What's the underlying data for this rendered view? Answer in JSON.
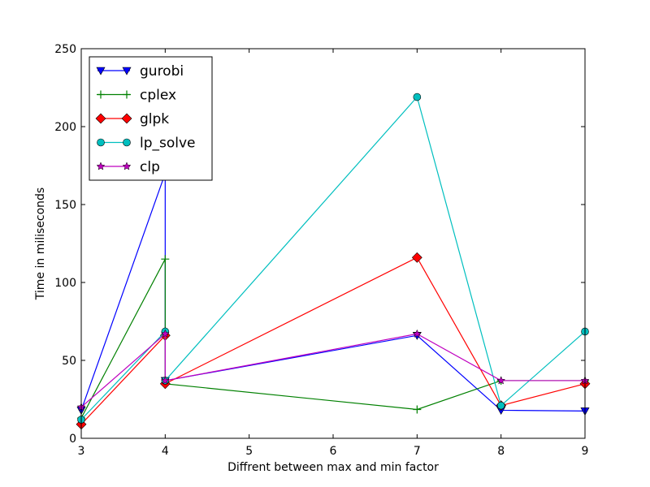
{
  "chart_data": {
    "type": "line",
    "title": "",
    "xlabel": "Diffrent between max and min factor",
    "ylabel": "Time in miliseconds",
    "xlim": [
      3,
      9
    ],
    "ylim": [
      0,
      250
    ],
    "xticks": [
      "3",
      "4",
      "5",
      "6",
      "7",
      "8",
      "9"
    ],
    "yticks": [
      "0",
      "50",
      "100",
      "150",
      "200",
      "250"
    ],
    "grid": false,
    "legend_position": "top-left",
    "series": [
      {
        "name": "gurobi",
        "color": "#0000ff",
        "marker": "triangle-down",
        "points": [
          [
            3,
            18
          ],
          [
            4,
            170
          ],
          [
            4,
            37
          ],
          [
            7,
            66
          ],
          [
            8,
            18
          ],
          [
            9,
            17.5
          ]
        ]
      },
      {
        "name": "cplex",
        "color": "#008000",
        "marker": "plus",
        "points": [
          [
            3,
            13
          ],
          [
            4,
            115
          ],
          [
            4,
            35
          ],
          [
            7,
            18.5
          ],
          [
            8,
            37
          ],
          [
            9,
            37
          ]
        ]
      },
      {
        "name": "glpk",
        "color": "#ff0000",
        "marker": "diamond",
        "points": [
          [
            3,
            9
          ],
          [
            4,
            66
          ],
          [
            4,
            35
          ],
          [
            7,
            116
          ],
          [
            8,
            21
          ],
          [
            9,
            35
          ]
        ]
      },
      {
        "name": "lp_solve",
        "color": "#00bfbf",
        "marker": "circle",
        "points": [
          [
            3,
            12
          ],
          [
            4,
            68.5
          ],
          [
            4,
            37
          ],
          [
            7,
            219
          ],
          [
            8,
            21
          ],
          [
            9,
            68.5
          ]
        ]
      },
      {
        "name": "clp",
        "color": "#bf00bf",
        "marker": "star",
        "points": [
          [
            3,
            20
          ],
          [
            4,
            67
          ],
          [
            4,
            37
          ],
          [
            7,
            67
          ],
          [
            8,
            37
          ],
          [
            9,
            37
          ]
        ]
      }
    ]
  }
}
